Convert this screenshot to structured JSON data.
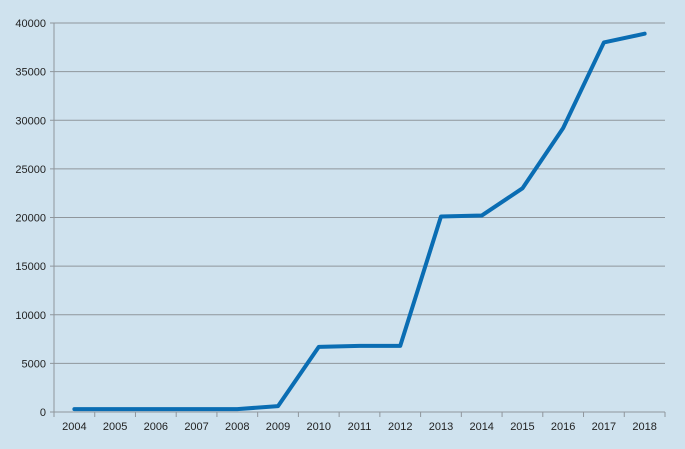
{
  "colors": {
    "background": "#cfe2ee",
    "gridline": "#8f969c",
    "axis": "#8f969c",
    "series_line": "#0a6db3",
    "tick_text": "#222222"
  },
  "chart_data": {
    "type": "line",
    "title": "",
    "xlabel": "",
    "ylabel": "",
    "categories": [
      "2004",
      "2005",
      "2006",
      "2007",
      "2008",
      "2009",
      "2010",
      "2011",
      "2012",
      "2013",
      "2014",
      "2015",
      "2016",
      "2017",
      "2018"
    ],
    "series": [
      {
        "values": [
          300,
          300,
          300,
          300,
          300,
          600,
          6700,
          6800,
          6800,
          20100,
          20200,
          23000,
          29200,
          38000,
          38900
        ]
      }
    ],
    "ylim": [
      0,
      40000
    ],
    "yticks": [
      "0",
      "5000",
      "10000",
      "15000",
      "20000",
      "25000",
      "30000",
      "35000",
      "40000"
    ],
    "grid": true,
    "legend": "none"
  }
}
